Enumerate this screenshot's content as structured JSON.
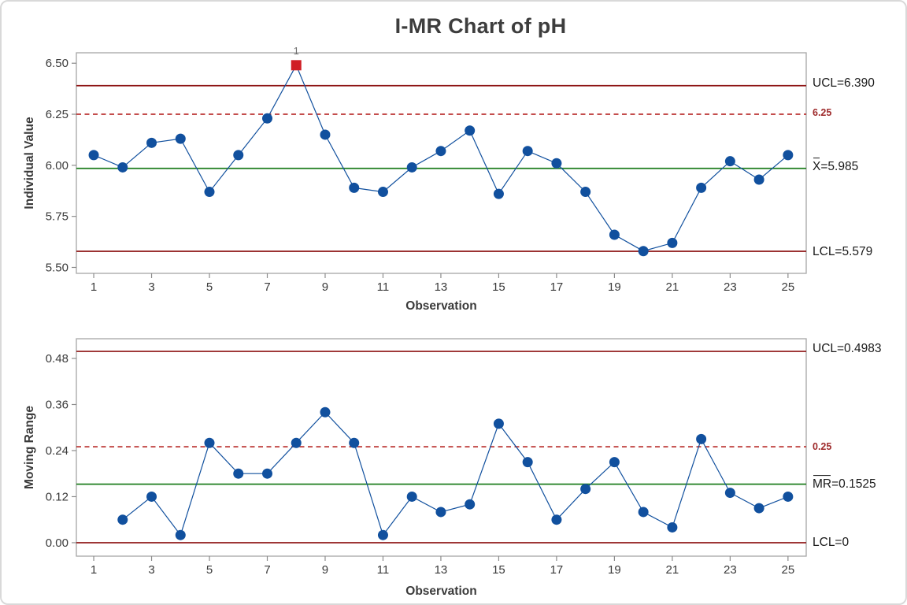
{
  "title": "I-MR Chart of pH",
  "colors": {
    "point_blue": "#11509E",
    "series_line_blue": "#11509E",
    "limit_line_red": "#8E1414",
    "reference_line_red": "#B01412",
    "center_line_green": "#1E7D1E",
    "out_of_control_red": "#D01E24",
    "frame_gray": "#A6A6A6",
    "tick_gray": "#8C8C8C",
    "tick_text": "#3A3A3A",
    "flag_gray": "#6F6F6F"
  },
  "chart_data": [
    {
      "type": "line",
      "name": "individuals",
      "ylabel": "Individual Value",
      "xlabel": "Observation",
      "x": [
        1,
        2,
        3,
        4,
        5,
        6,
        7,
        8,
        9,
        10,
        11,
        12,
        13,
        14,
        15,
        16,
        17,
        18,
        19,
        20,
        21,
        22,
        23,
        24,
        25
      ],
      "values": [
        6.05,
        5.99,
        6.11,
        6.13,
        5.87,
        6.05,
        6.23,
        6.49,
        6.15,
        5.89,
        5.87,
        5.99,
        6.07,
        6.17,
        5.86,
        6.07,
        6.01,
        5.87,
        5.66,
        5.58,
        5.62,
        5.89,
        6.02,
        5.93,
        6.05
      ],
      "ucl": 6.39,
      "center": 5.985,
      "lcl": 5.579,
      "reference": 6.25,
      "ylim": [
        5.471,
        6.551
      ],
      "yticks": [
        6.5,
        6.25,
        6.0,
        5.75,
        5.5
      ],
      "ytick_labels": [
        "6.50",
        "6.25",
        "6.00",
        "5.75",
        "5.50"
      ],
      "xticks": [
        1,
        3,
        5,
        7,
        9,
        11,
        13,
        15,
        17,
        19,
        21,
        23,
        25
      ],
      "xtick_labels": [
        "1",
        "3",
        "5",
        "7",
        "9",
        "11",
        "13",
        "15",
        "17",
        "19",
        "21",
        "23",
        "25"
      ],
      "out_of_control_points": [
        8
      ],
      "ooc_flag_label": "1",
      "right_labels": {
        "ucl": "UCL=6.390",
        "reference": "6.25",
        "center_prefix": "X",
        "center_rest": "=5.985",
        "lcl": "LCL=5.579"
      }
    },
    {
      "type": "line",
      "name": "moving_range",
      "ylabel": "Moving Range",
      "xlabel": "Observation",
      "x": [
        2,
        3,
        4,
        5,
        6,
        7,
        8,
        9,
        10,
        11,
        12,
        13,
        14,
        15,
        16,
        17,
        18,
        19,
        20,
        21,
        22,
        23,
        24,
        25
      ],
      "values": [
        0.06,
        0.12,
        0.02,
        0.26,
        0.18,
        0.18,
        0.26,
        0.34,
        0.26,
        0.02,
        0.12,
        0.08,
        0.1,
        0.31,
        0.21,
        0.06,
        0.14,
        0.21,
        0.08,
        0.04,
        0.27,
        0.13,
        0.09,
        0.12
      ],
      "ucl": 0.4983,
      "center": 0.1525,
      "lcl": 0,
      "reference": 0.25,
      "ylim": [
        -0.035,
        0.5313
      ],
      "yticks": [
        0.48,
        0.36,
        0.24,
        0.12,
        0.0
      ],
      "ytick_labels": [
        "0.48",
        "0.36",
        "0.24",
        "0.12",
        "0.00"
      ],
      "xticks": [
        1,
        3,
        5,
        7,
        9,
        11,
        13,
        15,
        17,
        19,
        21,
        23,
        25
      ],
      "xtick_labels": [
        "1",
        "3",
        "5",
        "7",
        "9",
        "11",
        "13",
        "15",
        "17",
        "19",
        "21",
        "23",
        "25"
      ],
      "out_of_control_points": [],
      "ooc_flag_label": "",
      "right_labels": {
        "ucl": "UCL=0.4983",
        "reference": "0.25",
        "center_prefix": "MR",
        "center_rest": "=0.1525",
        "lcl": "LCL=0"
      }
    }
  ]
}
